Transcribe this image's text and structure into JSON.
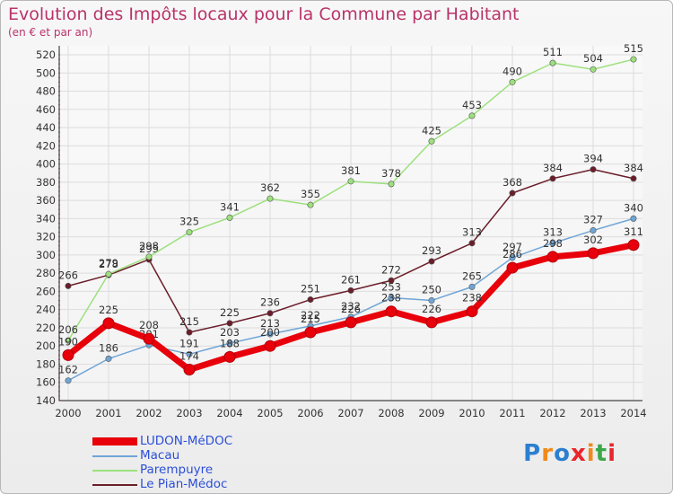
{
  "title": "Evolution des Impôts locaux pour la Commune par Habitant",
  "subtitle": "(en € et par an)",
  "logo_text": "Proxiti",
  "chart_data": {
    "type": "line",
    "categories": [
      "2000",
      "2001",
      "2002",
      "2003",
      "2004",
      "2005",
      "2006",
      "2007",
      "2008",
      "2009",
      "2010",
      "2011",
      "2012",
      "2013",
      "2014"
    ],
    "ylim": [
      140,
      520
    ],
    "yticks": [
      140,
      160,
      180,
      200,
      220,
      240,
      260,
      280,
      300,
      320,
      340,
      360,
      380,
      400,
      420,
      440,
      460,
      480,
      500,
      520
    ],
    "grid": true,
    "legend_position": "bottom-left",
    "series": [
      {
        "name": "LUDON-MéDOC",
        "color": "#e8000b",
        "values": [
          190,
          225,
          208,
          174,
          188,
          200,
          215,
          226,
          238,
          226,
          238,
          286,
          298,
          302,
          311
        ]
      },
      {
        "name": "Macau",
        "color": "#6fa5d6",
        "values": [
          162,
          186,
          201,
          191,
          203,
          213,
          222,
          232,
          253,
          250,
          265,
          297,
          313,
          327,
          340
        ]
      },
      {
        "name": "Parempuyre",
        "color": "#9de07e",
        "values": [
          206,
          279,
          298,
          325,
          341,
          362,
          355,
          381,
          378,
          425,
          453,
          490,
          511,
          504,
          515
        ]
      },
      {
        "name": "Le Pian-Médoc",
        "color": "#6b1e2a",
        "values": [
          266,
          278,
          295,
          215,
          225,
          236,
          251,
          261,
          272,
          293,
          313,
          368,
          384,
          394,
          384
        ]
      }
    ]
  }
}
